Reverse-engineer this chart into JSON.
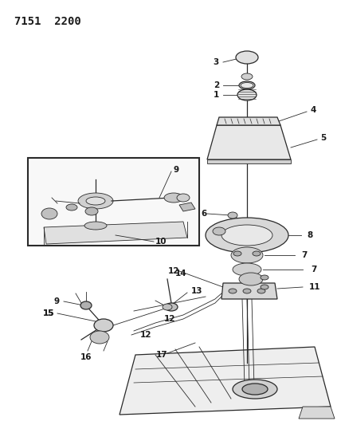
{
  "title_code": "7151  2200",
  "bg_color": "#ffffff",
  "line_color": "#2a2a2a",
  "label_color": "#1a1a1a",
  "title_fontsize": 10,
  "label_fontsize": 7.5,
  "fig_width": 4.28,
  "fig_height": 5.33,
  "dpi": 100
}
